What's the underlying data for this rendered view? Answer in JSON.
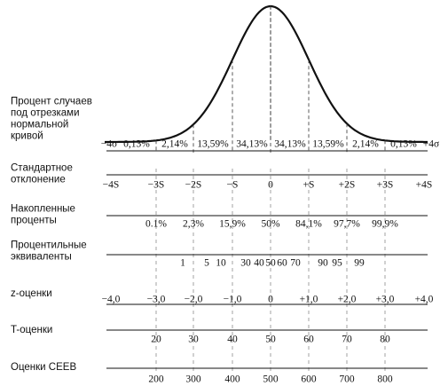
{
  "rows": [
    {
      "label": [
        "Процент случаев",
        "под отрезками",
        "нормальной",
        "кривой"
      ],
      "marks": [
        "−4σ",
        "0,13%",
        "2,14%",
        "13,59%",
        "34,13%",
        "34,13%",
        "13,59%",
        "2,14%",
        "0,13%",
        "+4σ"
      ]
    },
    {
      "label": [
        "Стандартное",
        "отклонение"
      ],
      "marks": [
        "−4S",
        "−3S",
        "−2S",
        "−S",
        "0",
        "+S",
        "+2S",
        "+3S",
        "+4S"
      ]
    },
    {
      "label": [
        "Накопленные",
        "проценты"
      ],
      "marks": [
        "0.1%",
        "2,3%",
        "15,9%",
        "50%",
        "84,1%",
        "97,7%",
        "99,9%"
      ]
    },
    {
      "label": [
        "Процентильные",
        "эквиваленты"
      ],
      "marks": [
        "1",
        "5",
        "10",
        "30",
        "40",
        "50",
        "60",
        "70",
        "90",
        "95",
        "99"
      ]
    },
    {
      "label": [
        "z-оценки"
      ],
      "marks": [
        "−4,0",
        "−3,0",
        "−2,0",
        "−1,0",
        "0",
        "+1,0",
        "+2,0",
        "+3,0",
        "+4,0"
      ]
    },
    {
      "label": [
        "T-оценки"
      ],
      "marks": [
        "20",
        "30",
        "40",
        "50",
        "60",
        "70",
        "80"
      ]
    },
    {
      "label": [
        "Оценки СЕЕВ"
      ],
      "marks": [
        "200",
        "300",
        "400",
        "500",
        "600",
        "700",
        "800"
      ]
    }
  ]
}
